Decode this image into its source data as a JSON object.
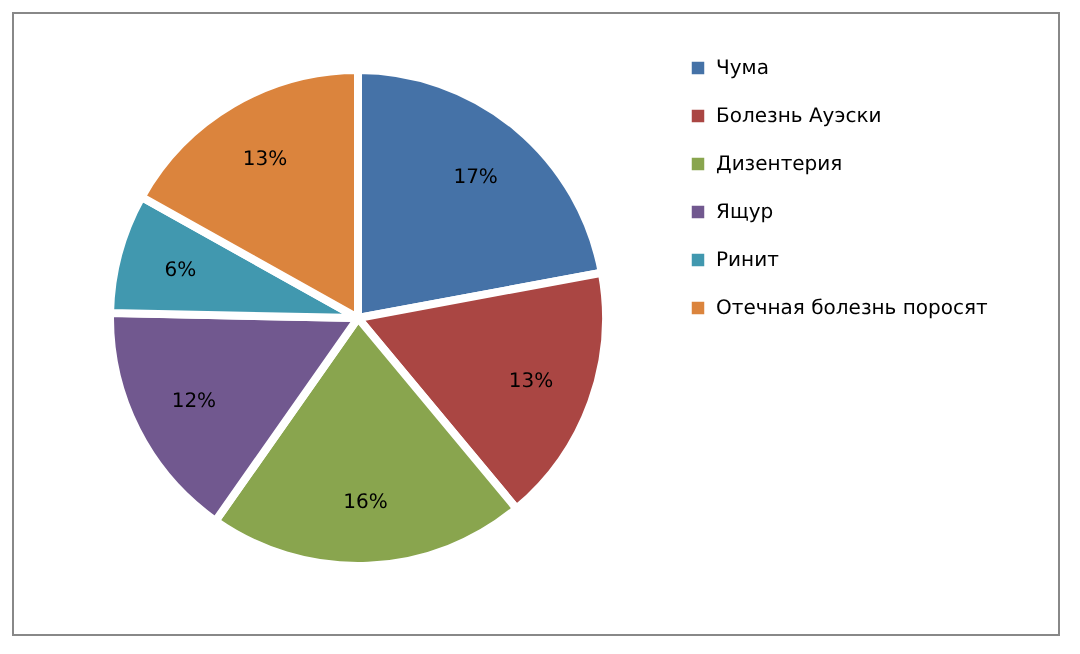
{
  "chart_data": {
    "type": "pie",
    "categories": [
      "Чума",
      "Болезнь Ауэски",
      "Дизентерия",
      "Ящур",
      "Ринит",
      "Отечная болезнь поросят"
    ],
    "values": [
      17,
      13,
      16,
      12,
      6,
      13
    ],
    "value_labels": [
      "17%",
      "13%",
      "16%",
      "12%",
      "6%",
      "13%"
    ],
    "colors": [
      "#4572a7",
      "#aa4643",
      "#89a54e",
      "#71588f",
      "#4198af",
      "#db843d"
    ],
    "legend": "right"
  }
}
